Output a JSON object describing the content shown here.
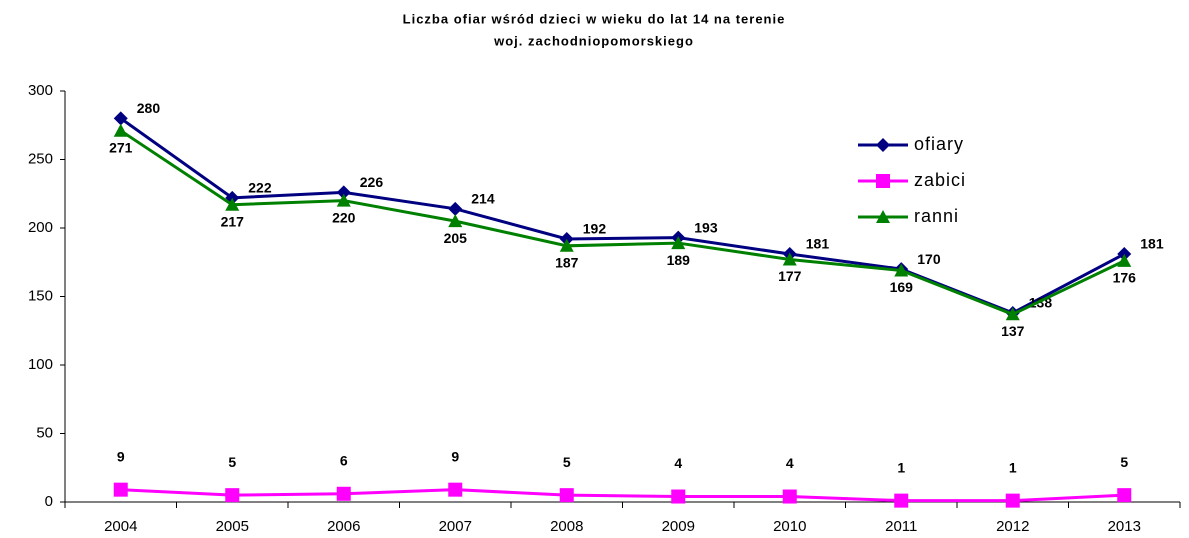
{
  "chart_data": {
    "type": "line",
    "title": [
      "Liczba ofiar wśród dzieci w wieku do lat 14 na terenie",
      "woj. zachodniopomorskiego"
    ],
    "categories": [
      "2004",
      "2005",
      "2006",
      "2007",
      "2008",
      "2009",
      "2010",
      "2011",
      "2012",
      "2013"
    ],
    "series": [
      {
        "name": "ofiary",
        "color": "#000080",
        "marker": "diamond",
        "values": [
          280,
          222,
          226,
          214,
          192,
          193,
          181,
          170,
          138,
          181
        ]
      },
      {
        "name": "zabici",
        "color": "#ff00ff",
        "marker": "square",
        "values": [
          9,
          5,
          6,
          9,
          5,
          4,
          4,
          1,
          1,
          5
        ]
      },
      {
        "name": "ranni",
        "color": "#008000",
        "marker": "triangle",
        "values": [
          271,
          217,
          220,
          205,
          187,
          189,
          177,
          169,
          137,
          176
        ]
      }
    ],
    "ylim": [
      0,
      300
    ],
    "yticks": [
      0,
      50,
      100,
      150,
      200,
      250,
      300
    ],
    "grid": false,
    "legend": "top-right"
  }
}
